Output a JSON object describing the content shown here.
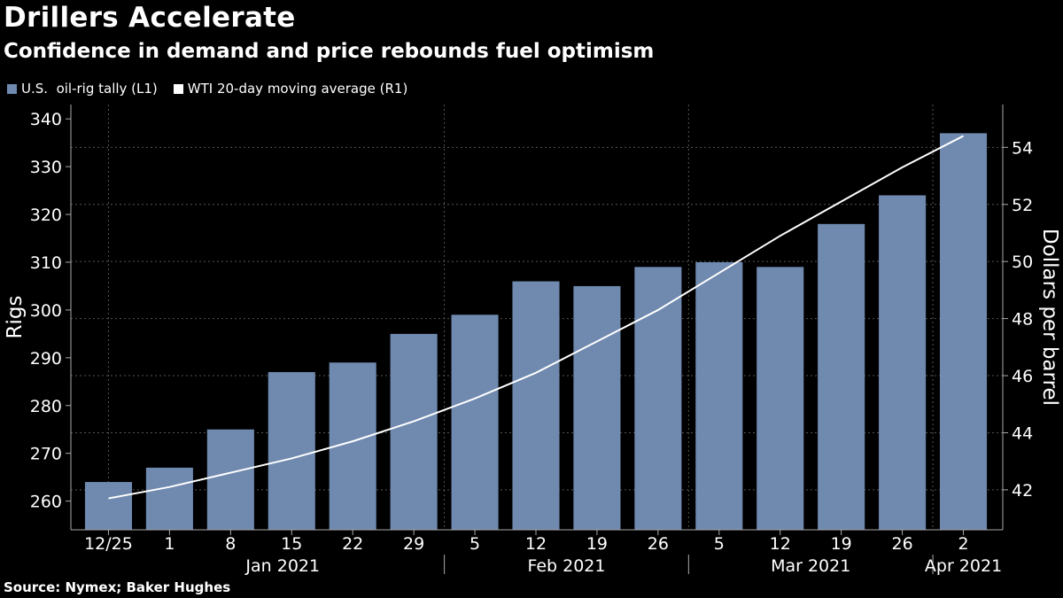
{
  "header": {
    "title": "Drillers Accelerate",
    "subtitle": "Confidence in demand and price rebounds fuel optimism"
  },
  "legend": {
    "items": [
      {
        "label": "U.S.  oil-rig tally (L1)",
        "color": "#6f89af"
      },
      {
        "label": "WTI 20-day moving average (R1)",
        "color": "#ffffff"
      }
    ]
  },
  "footer": {
    "source": "Source: Nymex; Baker Hughes"
  },
  "chart_data": {
    "type": "bar",
    "title": "Drillers Accelerate",
    "subtitle": "Confidence in demand and price rebounds fuel optimism",
    "categories": [
      "12/25",
      "1",
      "8",
      "15",
      "22",
      "29",
      "5",
      "12",
      "19",
      "26",
      "5",
      "12",
      "19",
      "26",
      "2"
    ],
    "month_labels": [
      "Jan 2021",
      "Feb 2021",
      "Mar 2021",
      "Apr 2021"
    ],
    "series": [
      {
        "name": "U.S.  oil-rig tally (L1)",
        "type": "bar",
        "axis": "left",
        "color": "#6f89af",
        "values": [
          264,
          267,
          275,
          287,
          289,
          295,
          299,
          306,
          305,
          309,
          310,
          309,
          318,
          324,
          337
        ]
      },
      {
        "name": "WTI 20-day moving average (R1)",
        "type": "line",
        "axis": "right",
        "color": "#ffffff",
        "values": [
          41.7,
          42.1,
          42.6,
          43.1,
          43.7,
          44.4,
          45.2,
          46.1,
          47.2,
          48.3,
          49.6,
          50.9,
          52.1,
          53.3,
          54.4
        ]
      }
    ],
    "ylabel": "Rigs",
    "ylabel_right": "Dollars per barrel",
    "ylim": [
      254,
      343
    ],
    "y_ticks": [
      260,
      270,
      280,
      290,
      300,
      310,
      320,
      330,
      340
    ],
    "ylim_right": [
      40.6,
      55.5
    ],
    "y_ticks_right": [
      42,
      44,
      46,
      48,
      50,
      52,
      54
    ],
    "grid": true,
    "legend_position": "top-left"
  }
}
